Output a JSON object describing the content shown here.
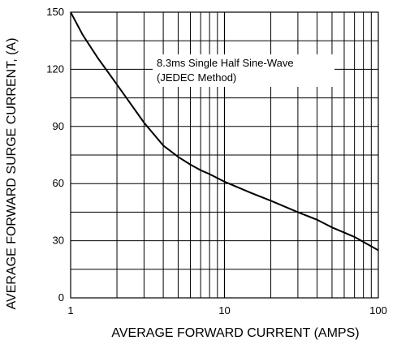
{
  "chart_data": {
    "type": "line",
    "title": "",
    "xlabel": "AVERAGE FORWARD CURRENT (AMPS)",
    "ylabel": "AVERAGE FORWARD SURGE CURRENT, (A)",
    "x_scale": "log",
    "xlim": [
      1,
      100
    ],
    "ylim": [
      0,
      150
    ],
    "x_ticks": [
      1,
      10,
      100
    ],
    "x_tick_labels": [
      "1",
      "10",
      "100"
    ],
    "y_ticks": [
      0,
      30,
      60,
      90,
      120,
      150
    ],
    "y_tick_labels": [
      "0",
      "30",
      "60",
      "90",
      "120",
      "150"
    ],
    "grid": true,
    "annotation": [
      "8.3ms Single Half Sine-Wave",
      "(JEDEC Method)"
    ],
    "series": [
      {
        "x": [
          1,
          1.2,
          1.5,
          2,
          2.5,
          3,
          4,
          5,
          6,
          7,
          8,
          10,
          15,
          20,
          30,
          40,
          50,
          70,
          100
        ],
        "y": [
          150,
          138,
          126,
          112,
          101,
          92,
          80,
          74,
          70,
          67,
          65,
          61,
          55,
          51,
          45,
          41,
          37,
          32,
          25
        ]
      }
    ]
  }
}
